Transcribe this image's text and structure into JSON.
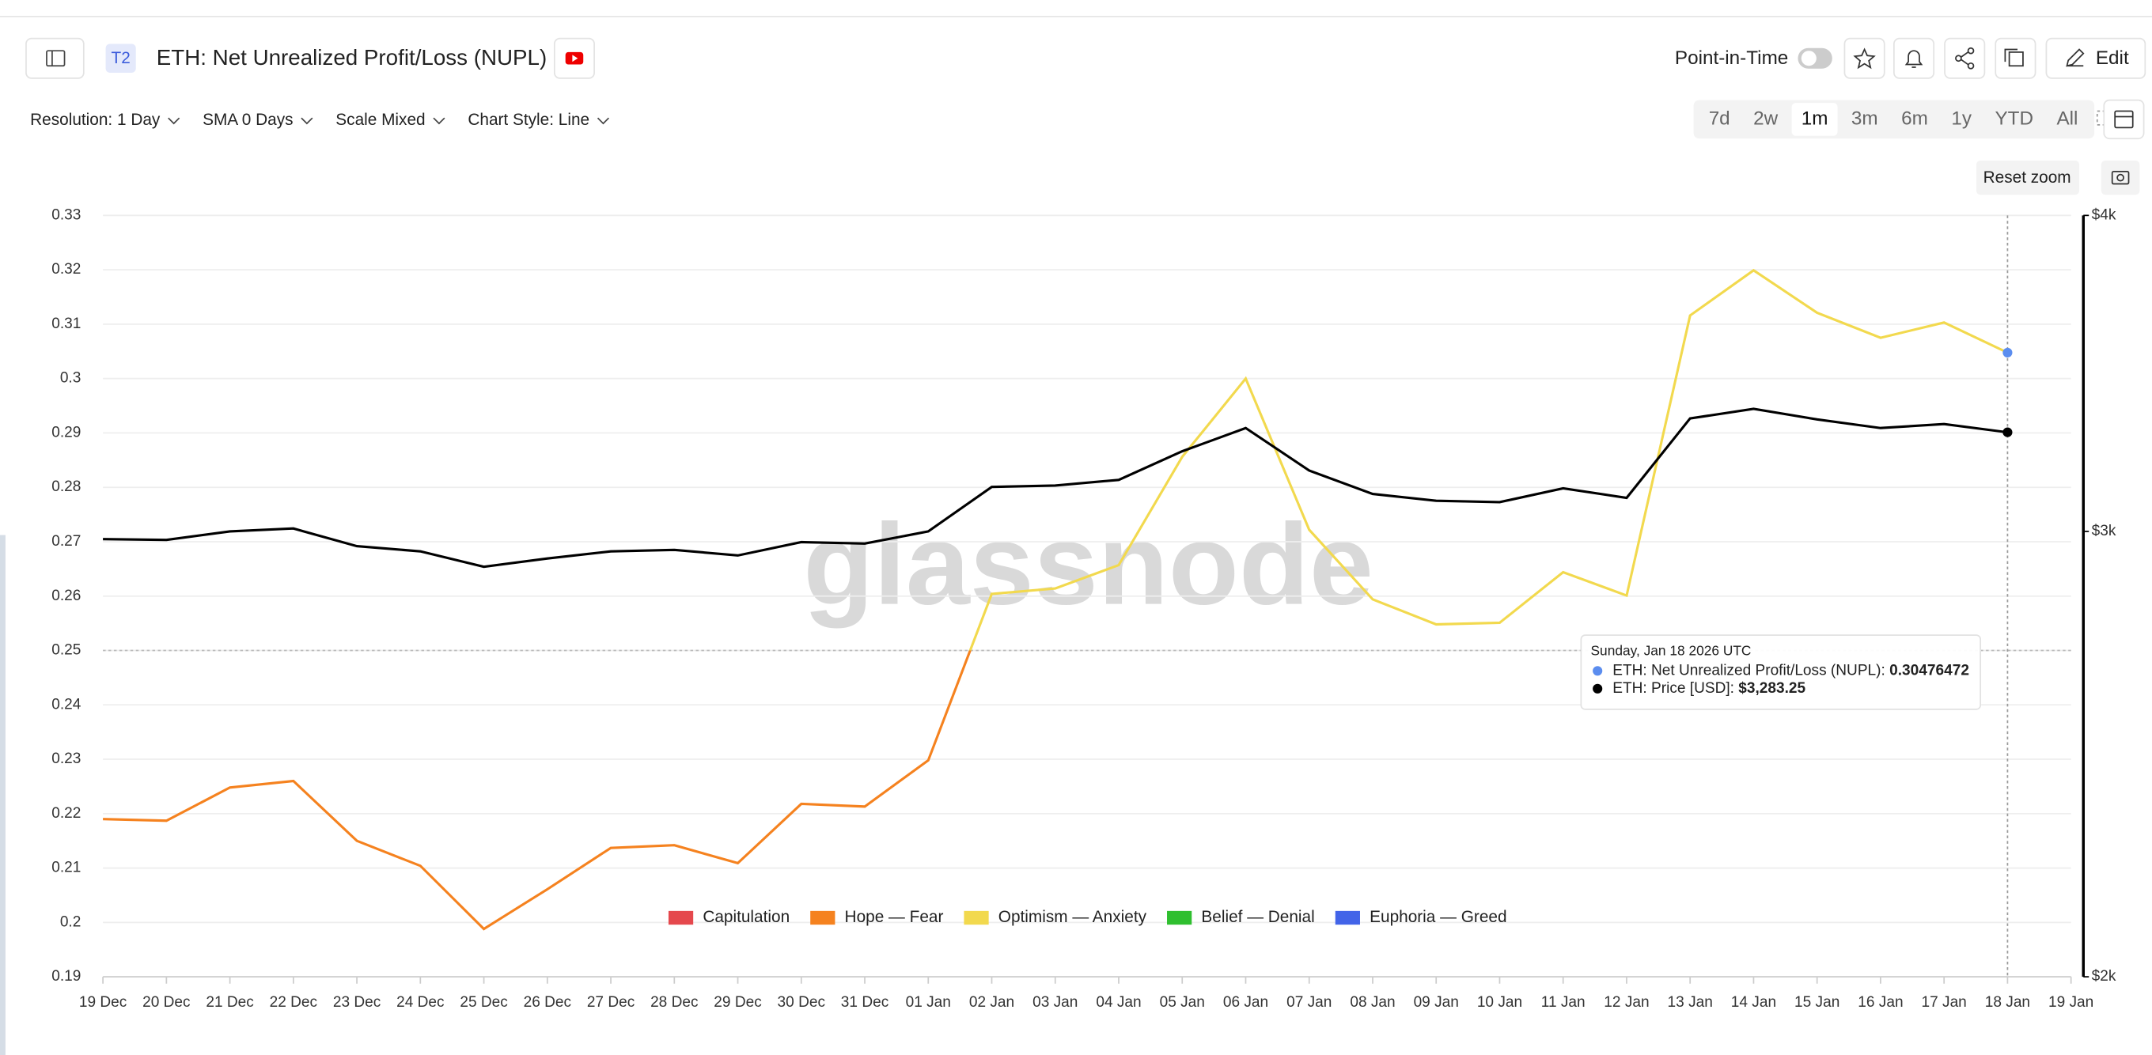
{
  "header": {
    "badge": "T2",
    "title": "ETH: Net Unrealized Profit/Loss (NUPL)",
    "toggle_label": "Point-in-Time",
    "edit": "Edit"
  },
  "controls": [
    "Resolution: 1 Day",
    "SMA 0 Days",
    "Scale Mixed",
    "Chart Style: Line"
  ],
  "ranges": {
    "options": [
      "7d",
      "2w",
      "1m",
      "3m",
      "6m",
      "1y",
      "YTD",
      "All"
    ],
    "active": "1m"
  },
  "reset_zoom": "Reset zoom",
  "watermark": "glassnode",
  "tooltip": {
    "title": "Sunday, Jan 18 2026 UTC",
    "rows": [
      {
        "label": "ETH: Net Unrealized Profit/Loss (NUPL):",
        "value": "0.30476472",
        "color": "#5b8def"
      },
      {
        "label": "ETH: Price [USD]:",
        "value": "$3,283.25",
        "color": "#000000"
      }
    ]
  },
  "chart_data": {
    "type": "line",
    "categories": [
      "19 Dec",
      "20 Dec",
      "21 Dec",
      "22 Dec",
      "23 Dec",
      "24 Dec",
      "25 Dec",
      "26 Dec",
      "27 Dec",
      "28 Dec",
      "29 Dec",
      "30 Dec",
      "31 Dec",
      "01 Jan",
      "02 Jan",
      "03 Jan",
      "04 Jan",
      "05 Jan",
      "06 Jan",
      "07 Jan",
      "08 Jan",
      "09 Jan",
      "10 Jan",
      "11 Jan",
      "12 Jan",
      "13 Jan",
      "14 Jan",
      "15 Jan",
      "16 Jan",
      "17 Jan",
      "18 Jan",
      "19 Jan"
    ],
    "series": [
      {
        "name": "ETH: Net Unrealized Profit/Loss (NUPL)",
        "axis": "y",
        "values": [
          0.219,
          0.2187,
          0.2248,
          0.226,
          0.215,
          0.2104,
          0.1988,
          0.2061,
          0.2137,
          0.2142,
          0.2109,
          0.2218,
          0.2213,
          0.2298,
          0.2604,
          0.2614,
          0.2657,
          0.2856,
          0.3,
          0.2722,
          0.2594,
          0.2548,
          0.2551,
          0.2644,
          0.2601,
          0.3116,
          0.3199,
          0.3121,
          0.3075,
          0.3103,
          0.30476472,
          null
        ]
      },
      {
        "name": "ETH: Price [USD]",
        "axis": "y2",
        "color": "#000000",
        "values": [
          2979,
          2977,
          3000,
          3008,
          2960,
          2946,
          2905,
          2927,
          2946,
          2950,
          2935,
          2971,
          2967,
          3000,
          3124,
          3128,
          3144,
          3227,
          3296,
          3171,
          3104,
          3085,
          3081,
          3120,
          3093,
          3325,
          3354,
          3322,
          3296,
          3308,
          3283.25,
          null
        ]
      }
    ],
    "zones": [
      {
        "name": "Capitulation",
        "color": "#e5484d",
        "from": null
      },
      {
        "name": "Hope — Fear",
        "color": "#f5821f",
        "from": 0
      },
      {
        "name": "Optimism — Anxiety",
        "color": "#f2d94e",
        "from": 0.25
      },
      {
        "name": "Belief — Denial",
        "color": "#2fbf2f",
        "from": 0.5
      },
      {
        "name": "Euphoria — Greed",
        "color": "#4264e8",
        "from": 0.75
      }
    ],
    "ylim": [
      0.19,
      0.33
    ],
    "yticks": [
      0.19,
      0.2,
      0.21,
      0.22,
      0.23,
      0.24,
      0.25,
      0.26,
      0.27,
      0.28,
      0.29,
      0.3,
      0.31,
      0.32,
      0.33
    ],
    "y2lim": [
      2000,
      4000
    ],
    "y2log": true,
    "y2ticks": [
      {
        "value": 2000,
        "label": "$2k"
      },
      {
        "value": 3000,
        "label": "$3k"
      },
      {
        "value": 4000,
        "label": "$4k"
      }
    ],
    "grid": true
  }
}
